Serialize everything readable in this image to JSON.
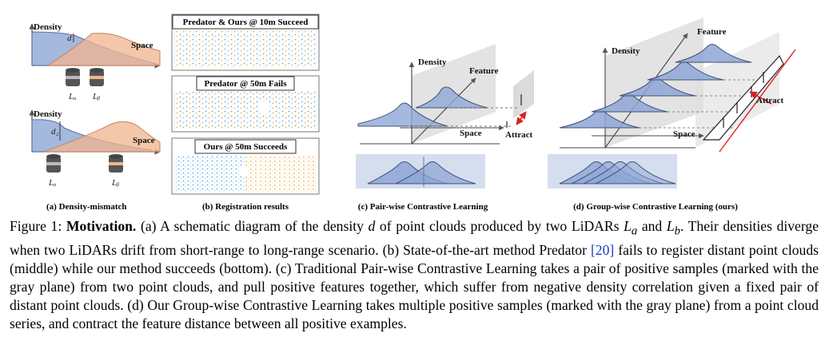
{
  "panel_a": {
    "density_label": "Density",
    "space_label": "Space",
    "d1_label": "d₁",
    "d2_label": "d₂",
    "la_label": "Lₐ",
    "lb_label": "Lᵦ",
    "caption": "(a) Density-mismatch"
  },
  "panel_b": {
    "box1_title": "Predator & Ours @ 10m Succeed",
    "box2_title": "Predator @ 50m Fails",
    "box3_title": "Ours @ 50m Succeeds",
    "caption": "(b) Registration results"
  },
  "panel_c": {
    "density_label": "Density",
    "feature_label": "Feature",
    "space_label": "Space",
    "attract_label": "Attract",
    "caption": "(c) Pair-wise Contrastive Learning"
  },
  "panel_d": {
    "density_label": "Density",
    "feature_label": "Feature",
    "space_label": "Space",
    "attract_label": "Attract",
    "caption": "(d) Group-wise Contrastive Learning (ours)"
  },
  "caption": {
    "label": "Figure 1: ",
    "bold": "Motivation.",
    "part1": " (a) A schematic diagram of the density ",
    "d": "d",
    "part2": " of point clouds produced by two LiDARs ",
    "la": "L",
    "la_sub": "a",
    "and": " and ",
    "lb": "L",
    "lb_sub": "b",
    "part3": ". Their densities diverge when two LiDARs drift from short-range to long-range scenario. (b) State-of-the-art method Predator ",
    "cite": "[20]",
    "part4": " fails to register distant point clouds (middle) while our method succeeds (bottom). (c) Traditional Pair-wise Contrastive Learning takes a pair of positive samples (marked with the gray plane) from two point clouds, and pull positive features together, which suffer from negative density correlation given a fixed pair of distant point clouds. (d) Our Group-wise Contrastive Learning takes multiple positive samples (marked with the gray plane) from a point cloud series, and contract the feature distance between all positive examples."
  },
  "colors": {
    "blue": "#8ea6d6",
    "orange": "#f2b48e",
    "cloud_blue": "#3fa9e6",
    "cloud_orange": "#f0a830",
    "attract": "#e02020"
  }
}
